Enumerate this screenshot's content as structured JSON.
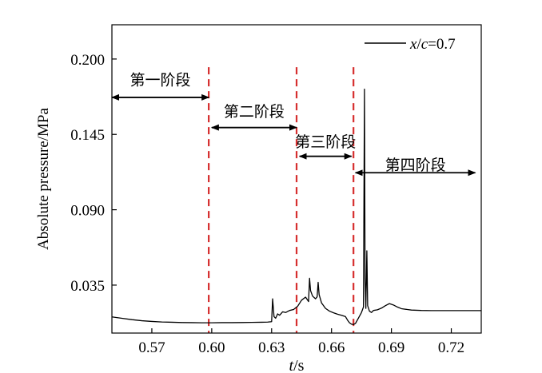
{
  "chart_data": {
    "type": "line",
    "xlabel_italic": "t",
    "xlabel_unit": "/s",
    "ylabel": "Absolute pressure/MPa",
    "xlim": [
      0.55,
      0.735
    ],
    "ylim": [
      0.0,
      0.225
    ],
    "xticks": [
      0.57,
      0.6,
      0.63,
      0.66,
      0.69,
      0.72
    ],
    "xtick_labels": [
      "0.57",
      "0.60",
      "0.63",
      "0.66",
      "0.69",
      "0.72"
    ],
    "yticks": [
      0.035,
      0.09,
      0.145,
      0.2
    ],
    "ytick_labels": [
      "0.035",
      "0.090",
      "0.145",
      "0.200"
    ],
    "legend": {
      "placement": "top-right",
      "label_parts": [
        "x",
        "/",
        "c",
        "=0.7"
      ]
    },
    "series": [
      {
        "name": "x/c=0.7",
        "color": "#000000",
        "points": [
          [
            0.55,
            0.0118
          ],
          [
            0.555,
            0.0108
          ],
          [
            0.56,
            0.0098
          ],
          [
            0.565,
            0.009
          ],
          [
            0.57,
            0.0085
          ],
          [
            0.575,
            0.0081
          ],
          [
            0.58,
            0.0079
          ],
          [
            0.585,
            0.0077
          ],
          [
            0.59,
            0.0076
          ],
          [
            0.595,
            0.0075
          ],
          [
            0.6,
            0.0075
          ],
          [
            0.605,
            0.0076
          ],
          [
            0.61,
            0.0076
          ],
          [
            0.615,
            0.0077
          ],
          [
            0.62,
            0.0078
          ],
          [
            0.625,
            0.0079
          ],
          [
            0.628,
            0.008
          ],
          [
            0.63,
            0.0083
          ],
          [
            0.6305,
            0.025
          ],
          [
            0.6312,
            0.012
          ],
          [
            0.632,
            0.0108
          ],
          [
            0.633,
            0.014
          ],
          [
            0.634,
            0.013
          ],
          [
            0.6355,
            0.0155
          ],
          [
            0.637,
            0.015
          ],
          [
            0.639,
            0.0165
          ],
          [
            0.641,
            0.0172
          ],
          [
            0.643,
            0.0195
          ],
          [
            0.645,
            0.024
          ],
          [
            0.647,
            0.0262
          ],
          [
            0.6485,
            0.023
          ],
          [
            0.649,
            0.04
          ],
          [
            0.6495,
            0.031
          ],
          [
            0.6505,
            0.027
          ],
          [
            0.652,
            0.025
          ],
          [
            0.6528,
            0.0265
          ],
          [
            0.6533,
            0.037
          ],
          [
            0.6538,
            0.028
          ],
          [
            0.655,
            0.022
          ],
          [
            0.657,
            0.018
          ],
          [
            0.659,
            0.016
          ],
          [
            0.661,
            0.0148
          ],
          [
            0.663,
            0.0138
          ],
          [
            0.665,
            0.013
          ],
          [
            0.667,
            0.012
          ],
          [
            0.668,
            0.0095
          ],
          [
            0.669,
            0.0075
          ],
          [
            0.67,
            0.0065
          ],
          [
            0.671,
            0.0062
          ],
          [
            0.672,
            0.007
          ],
          [
            0.6735,
            0.011
          ],
          [
            0.675,
            0.015
          ],
          [
            0.676,
            0.019
          ],
          [
            0.6765,
            0.178
          ],
          [
            0.6768,
            0.04
          ],
          [
            0.6772,
            0.018
          ],
          [
            0.6777,
            0.06
          ],
          [
            0.6781,
            0.02
          ],
          [
            0.679,
            0.016
          ],
          [
            0.68,
            0.015
          ],
          [
            0.681,
            0.0165
          ],
          [
            0.683,
            0.017
          ],
          [
            0.685,
            0.0182
          ],
          [
            0.687,
            0.02
          ],
          [
            0.689,
            0.0215
          ],
          [
            0.691,
            0.0205
          ],
          [
            0.693,
            0.019
          ],
          [
            0.695,
            0.0178
          ],
          [
            0.698,
            0.0172
          ],
          [
            0.7,
            0.0168
          ],
          [
            0.705,
            0.0165
          ],
          [
            0.71,
            0.0164
          ],
          [
            0.72,
            0.0164
          ],
          [
            0.73,
            0.0164
          ],
          [
            0.735,
            0.0164
          ]
        ]
      }
    ],
    "stage_dividers": [
      0.5985,
      0.6425,
      0.671
    ],
    "stage_annotations": [
      {
        "label": "第一阶段",
        "from": 0.55,
        "to": 0.5985,
        "label_y": 0.185,
        "arrow_y": 0.172
      },
      {
        "label": "第二阶段",
        "from": 0.6,
        "to": 0.6425,
        "label_y": 0.162,
        "arrow_y": 0.15
      },
      {
        "label": "第三阶段",
        "from": 0.644,
        "to": 0.67,
        "label_y": 0.14,
        "arrow_y": 0.129
      },
      {
        "label": "第四阶段",
        "from": 0.672,
        "to": 0.732,
        "label_y": 0.123,
        "arrow_y": 0.117
      }
    ],
    "colors": {
      "line": "#000000",
      "divider": "#d62f2f",
      "arrow": "#000000"
    }
  }
}
